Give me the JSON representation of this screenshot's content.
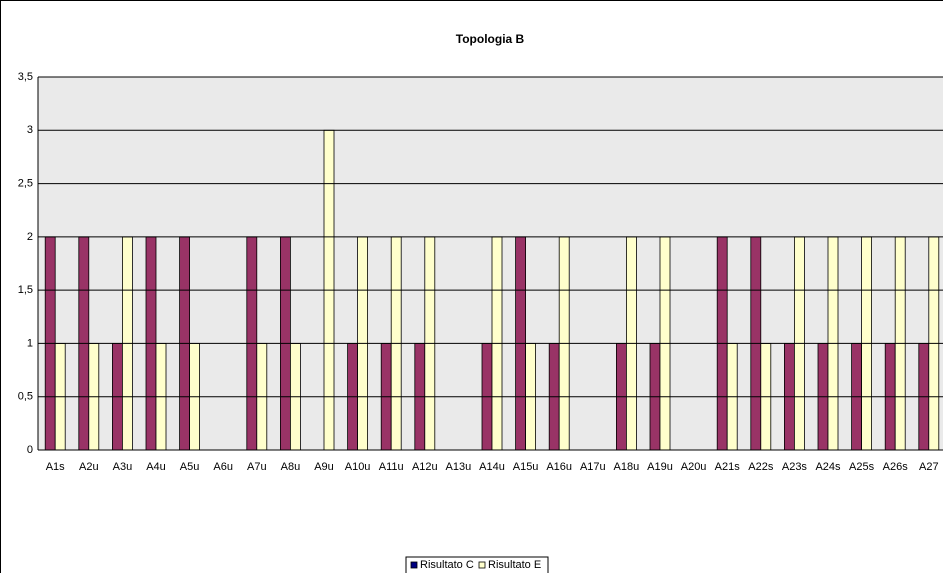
{
  "chart_data": {
    "type": "bar",
    "title": "Topologia B",
    "categories": [
      "A1s",
      "A2u",
      "A3u",
      "A4u",
      "A5u",
      "A6u",
      "A7u",
      "A8u",
      "A9u",
      "A10u",
      "A11u",
      "A12u",
      "A13u",
      "A14u",
      "A15u",
      "A16u",
      "A17u",
      "A18u",
      "A19u",
      "A20u",
      "A21s",
      "A22s",
      "A23s",
      "A24s",
      "A25s",
      "A26s",
      "A27"
    ],
    "series": [
      {
        "name": "Risultato C",
        "color": "#993366",
        "values": [
          2,
          2,
          1,
          2,
          2,
          0,
          2,
          2,
          0,
          1,
          1,
          1,
          0,
          1,
          2,
          1,
          0,
          1,
          1,
          0,
          2,
          2,
          1,
          1,
          1,
          1,
          1
        ]
      },
      {
        "name": "Risultato E",
        "color": "#FFFFCC",
        "values": [
          1,
          1,
          2,
          1,
          1,
          0,
          1,
          1,
          3,
          2,
          2,
          2,
          0,
          2,
          1,
          2,
          0,
          2,
          2,
          0,
          1,
          1,
          2,
          2,
          2,
          2,
          2
        ]
      }
    ],
    "ylim": [
      0,
      3.5
    ],
    "yticks": [
      0,
      {
        "value": 0.5,
        "label": "0,5"
      },
      1,
      {
        "value": 1.5,
        "label": "1,5"
      },
      2,
      {
        "value": 2.5,
        "label": "2,5"
      },
      3,
      {
        "value": 3.5,
        "label": "3,5"
      }
    ],
    "grid": true,
    "legend": "bottom"
  }
}
